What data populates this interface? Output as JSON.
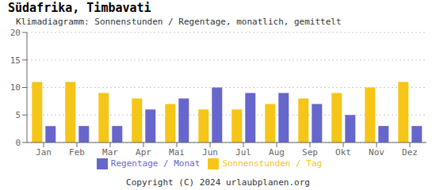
{
  "chart_data": {
    "type": "bar",
    "title": "Südafrika, Timbavati",
    "subtitle": "Klimadiagramm: Sonnenstunden / Regentage, monatlich, gemittelt",
    "footer": "Copyright (C) 2024 urlaubplanen.org",
    "categories": [
      "Jan",
      "Feb",
      "Mar",
      "Apr",
      "Mai",
      "Jun",
      "Jul",
      "Aug",
      "Sep",
      "Okt",
      "Nov",
      "Dez"
    ],
    "series": [
      {
        "name": "Sonnenstunden / Tag",
        "color": "#F5C518",
        "values": [
          11,
          11,
          9,
          8,
          7,
          6,
          6,
          7,
          8,
          9,
          10,
          11
        ]
      },
      {
        "name": "Regentage / Monat",
        "color": "#6666CC",
        "values": [
          3,
          3,
          3,
          6,
          8,
          10,
          9,
          9,
          7,
          5,
          3,
          3
        ]
      }
    ],
    "ylim": [
      0,
      20
    ],
    "yticks": [
      0,
      5,
      10,
      15,
      20
    ],
    "grid": true,
    "legend": "bottom"
  }
}
